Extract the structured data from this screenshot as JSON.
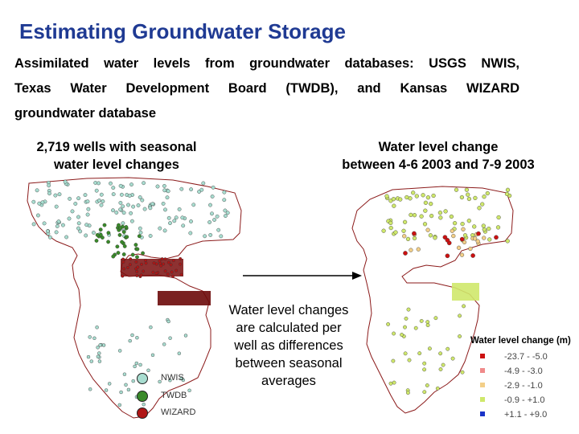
{
  "title": "Estimating Groundwater Storage",
  "intro": {
    "line1": "Assimilated water levels from groundwater databases: USGS NWIS,",
    "line2": "Texas Water Development Board (TWDB), and Kansas WIZARD",
    "line3": "groundwater database"
  },
  "left_panel": {
    "caption_line1": "2,719 wells with seasonal",
    "caption_line2": "water level changes",
    "legend": [
      {
        "label": "NWIS",
        "color": "#a8ddd0"
      },
      {
        "label": "TWDB",
        "color": "#3a8a2a"
      },
      {
        "label": "WIZARD",
        "color": "#b01515"
      }
    ]
  },
  "right_panel": {
    "caption_line1": "Water level change",
    "caption_line2": "between 4-6 2003 and 7-9 2003",
    "legend_title": "Water level change (m)",
    "legend": [
      {
        "label": "-23.7 - -5.0",
        "color": "#cc1111"
      },
      {
        "label": "-4.9 - -3.0",
        "color": "#f08a8a"
      },
      {
        "label": "-2.9 - -1.0",
        "color": "#f3cf88"
      },
      {
        "label": "-0.9 - +1.0",
        "color": "#cfe86b"
      },
      {
        "label": "+1.1 - +9.0",
        "color": "#1a33c8"
      }
    ]
  },
  "note": {
    "line1": "Water level changes",
    "line2": "are calculated per",
    "line3": "well as differences",
    "line4": "between seasonal",
    "line5": "averages"
  }
}
